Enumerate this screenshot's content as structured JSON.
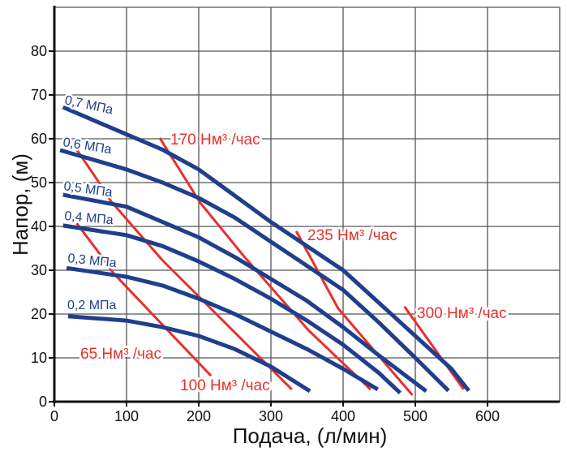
{
  "chart_data": {
    "type": "line",
    "title": "",
    "xlabel": "Подача, (л/мин)",
    "ylabel": "Напор, (м)",
    "xlim": [
      0,
      700
    ],
    "ylim": [
      0,
      90
    ],
    "xticks": [
      0,
      100,
      200,
      300,
      400,
      500,
      600
    ],
    "yticks": [
      0,
      10,
      20,
      30,
      40,
      50,
      60,
      70,
      80
    ],
    "grid": true,
    "colors": {
      "pressure": "#1f3f8d",
      "airflow": "#e8302a"
    },
    "pressure_curves": [
      {
        "name": "0,7 МПа",
        "points": [
          [
            12,
            67.2
          ],
          [
            100,
            61
          ],
          [
            150,
            57.5
          ],
          [
            200,
            53
          ],
          [
            250,
            47
          ],
          [
            300,
            41
          ],
          [
            350,
            35.5
          ],
          [
            400,
            30
          ],
          [
            450,
            22.5
          ],
          [
            500,
            15
          ],
          [
            550,
            7.5
          ],
          [
            574,
            2.5
          ]
        ]
      },
      {
        "name": "0,6 МПа",
        "points": [
          [
            8,
            57.4
          ],
          [
            100,
            53
          ],
          [
            150,
            50
          ],
          [
            200,
            46.5
          ],
          [
            250,
            42
          ],
          [
            300,
            36.5
          ],
          [
            350,
            31
          ],
          [
            400,
            25.5
          ],
          [
            450,
            18
          ],
          [
            500,
            10
          ],
          [
            546,
            2.5
          ]
        ]
      },
      {
        "name": "0,5 МПа",
        "points": [
          [
            12,
            47.2
          ],
          [
            100,
            44.5
          ],
          [
            150,
            41
          ],
          [
            200,
            37.5
          ],
          [
            250,
            33
          ],
          [
            300,
            28
          ],
          [
            350,
            23
          ],
          [
            400,
            17
          ],
          [
            450,
            10.5
          ],
          [
            515,
            2.4
          ]
        ]
      },
      {
        "name": "0,4 МПа",
        "points": [
          [
            12,
            40.2
          ],
          [
            100,
            38
          ],
          [
            150,
            35.5
          ],
          [
            200,
            32
          ],
          [
            250,
            28
          ],
          [
            300,
            23.5
          ],
          [
            350,
            18.5
          ],
          [
            400,
            13
          ],
          [
            450,
            6.5
          ],
          [
            479,
            2
          ]
        ]
      },
      {
        "name": "0,3 МПа",
        "points": [
          [
            17,
            30.5
          ],
          [
            100,
            28.5
          ],
          [
            150,
            26.5
          ],
          [
            200,
            23.5
          ],
          [
            250,
            20
          ],
          [
            300,
            16
          ],
          [
            350,
            12
          ],
          [
            400,
            7.5
          ],
          [
            448,
            2.8
          ]
        ]
      },
      {
        "name": "0,2 МПа",
        "points": [
          [
            19,
            19.5
          ],
          [
            100,
            18.5
          ],
          [
            150,
            17
          ],
          [
            200,
            15
          ],
          [
            250,
            12
          ],
          [
            300,
            8
          ],
          [
            354,
            2.4
          ]
        ]
      }
    ],
    "airflow_lines": [
      {
        "name": "65 Нм³ /час",
        "points": [
          [
            31,
            40.7
          ],
          [
            59,
            34.6
          ],
          [
            82,
            29.3
          ],
          [
            217,
            5.9
          ]
        ]
      },
      {
        "name": "100 Нм³ /час",
        "points": [
          [
            31.5,
            57.4
          ],
          [
            59.6,
            50.6
          ],
          [
            78.7,
            45.7
          ],
          [
            149,
            32.4
          ],
          [
            329,
            2.8
          ]
        ]
      },
      {
        "name": "170 Нм³ /час",
        "points": [
          [
            146,
            60.2
          ],
          [
            202,
            45.4
          ],
          [
            262,
            33.3
          ],
          [
            352,
            16.3
          ],
          [
            438,
            2.8
          ]
        ]
      },
      {
        "name": "235 Нм³ /час",
        "points": [
          [
            335,
            38.9
          ],
          [
            393,
            21.3
          ],
          [
            496,
            1.5
          ]
        ]
      },
      {
        "name": "300 Нм³ /час",
        "points": [
          [
            485,
            21.7
          ],
          [
            567,
            2.8
          ]
        ]
      }
    ]
  }
}
